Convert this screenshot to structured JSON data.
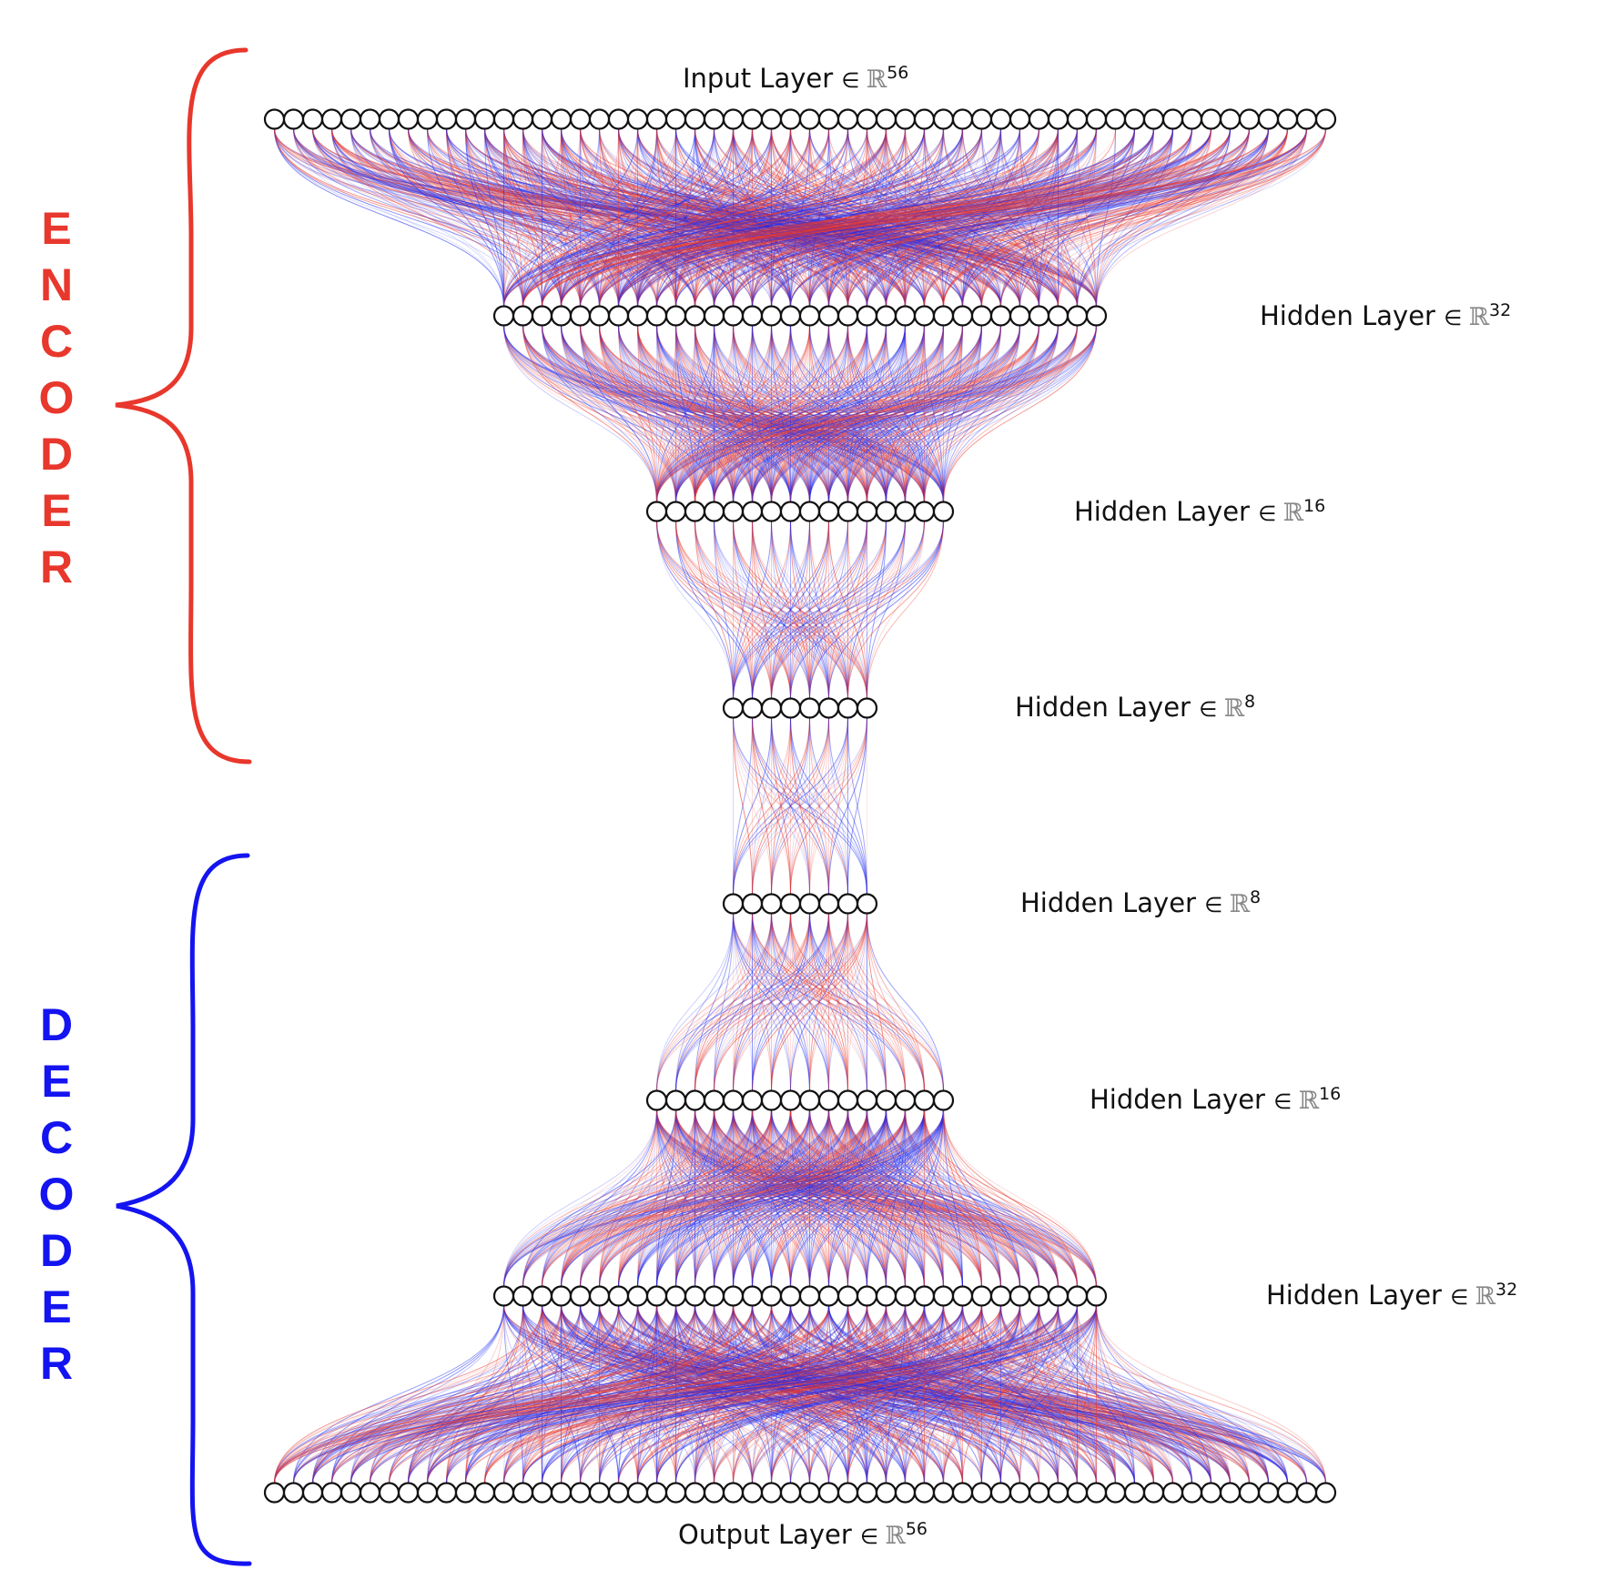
{
  "colors": {
    "encoder": "#e8372c",
    "decoder": "#1414f0",
    "edge_red": "#e8372c",
    "edge_blue": "#1f2cf0",
    "node_stroke": "#111111"
  },
  "sections": [
    {
      "id": "encoder",
      "letters": [
        "E",
        "N",
        "C",
        "O",
        "D",
        "E",
        "R"
      ],
      "color": "#e8372c"
    },
    {
      "id": "decoder",
      "letters": [
        "D",
        "E",
        "C",
        "O",
        "D",
        "E",
        "R"
      ],
      "color": "#1414f0"
    }
  ],
  "layers": [
    {
      "id": "input",
      "label": "Input Layer",
      "set_symbol": "∈",
      "field": "ℝ",
      "superscript": "56",
      "units": 56
    },
    {
      "id": "hidden-1",
      "label": "Hidden Layer",
      "set_symbol": "∈",
      "field": "ℝ",
      "superscript": "32",
      "units": 32
    },
    {
      "id": "hidden-2",
      "label": "Hidden Layer",
      "set_symbol": "∈",
      "field": "ℝ",
      "superscript": "16",
      "units": 16
    },
    {
      "id": "hidden-3",
      "label": "Hidden Layer",
      "set_symbol": "∈",
      "field": "ℝ",
      "superscript": "8",
      "units": 8
    },
    {
      "id": "hidden-4",
      "label": "Hidden Layer",
      "set_symbol": "∈",
      "field": "ℝ",
      "superscript": "8",
      "units": 8
    },
    {
      "id": "hidden-5",
      "label": "Hidden Layer",
      "set_symbol": "∈",
      "field": "ℝ",
      "superscript": "16",
      "units": 16
    },
    {
      "id": "hidden-6",
      "label": "Hidden Layer",
      "set_symbol": "∈",
      "field": "ℝ",
      "superscript": "32",
      "units": 32
    },
    {
      "id": "output",
      "label": "Output Layer",
      "set_symbol": "∈",
      "field": "ℝ",
      "superscript": "56",
      "units": 56
    }
  ]
}
